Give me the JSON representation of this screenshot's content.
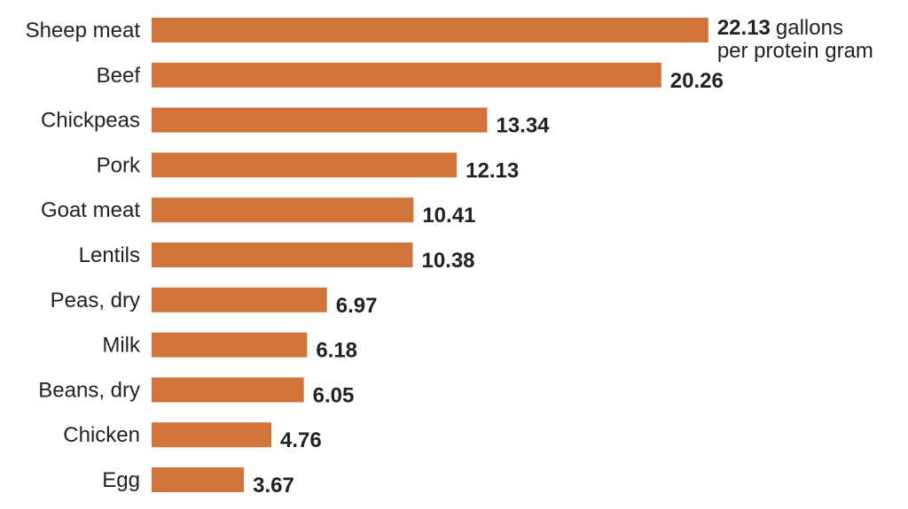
{
  "chart_data": {
    "type": "bar",
    "orientation": "horizontal",
    "categories": [
      "Sheep meat",
      "Beef",
      "Chickpeas",
      "Pork",
      "Goat meat",
      "Lentils",
      "Peas, dry",
      "Milk",
      "Beans, dry",
      "Chicken",
      "Egg"
    ],
    "values": [
      22.13,
      20.26,
      13.34,
      12.13,
      10.41,
      10.38,
      6.97,
      6.18,
      6.05,
      4.76,
      3.67
    ],
    "value_labels": [
      "22.13",
      "20.26",
      "13.34",
      "12.13",
      "10.41",
      "10.38",
      "6.97",
      "6.18",
      "6.05",
      "4.76",
      "3.67"
    ],
    "unit_label_line1": "gallons",
    "unit_label_line2": "per protein gram",
    "bar_color": "#D2733A",
    "text_color": "#222222",
    "grid": false,
    "legend": "none"
  }
}
